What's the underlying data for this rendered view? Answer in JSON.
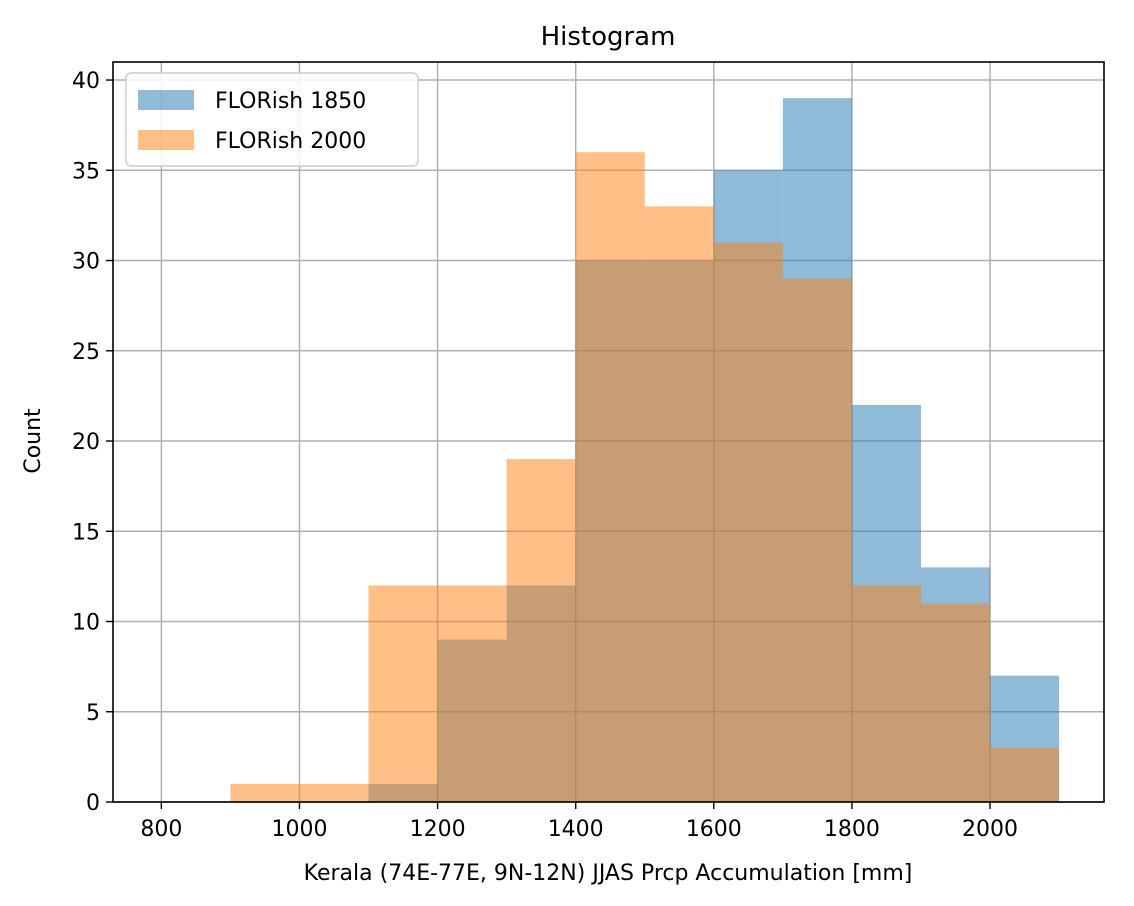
{
  "chart_data": {
    "type": "bar",
    "title": "Histogram",
    "xlabel": "Kerala (74E-77E, 9N-12N) JJAS Prcp Accumulation [mm]",
    "ylabel": "Count",
    "xlim": [
      730,
      2165
    ],
    "ylim": [
      0,
      41
    ],
    "xticks": [
      800,
      1000,
      1200,
      1400,
      1600,
      1800,
      2000
    ],
    "yticks": [
      0,
      5,
      10,
      15,
      20,
      25,
      30,
      35,
      40
    ],
    "bin_edges": [
      900,
      1000,
      1100,
      1200,
      1300,
      1400,
      1500,
      1600,
      1700,
      1800,
      1900,
      2000,
      2100
    ],
    "grid": true,
    "legend_position": "upper-left",
    "series": [
      {
        "name": "FLORish 1850",
        "color": "#1f77b4",
        "opacity": 0.5,
        "values": [
          0,
          0,
          1,
          9,
          12,
          30,
          30,
          35,
          39,
          22,
          13,
          7
        ]
      },
      {
        "name": "FLORish 2000",
        "color": "#ff7f0e",
        "opacity": 0.5,
        "values": [
          1,
          1,
          12,
          12,
          19,
          36,
          33,
          31,
          29,
          12,
          11,
          3
        ]
      }
    ]
  }
}
